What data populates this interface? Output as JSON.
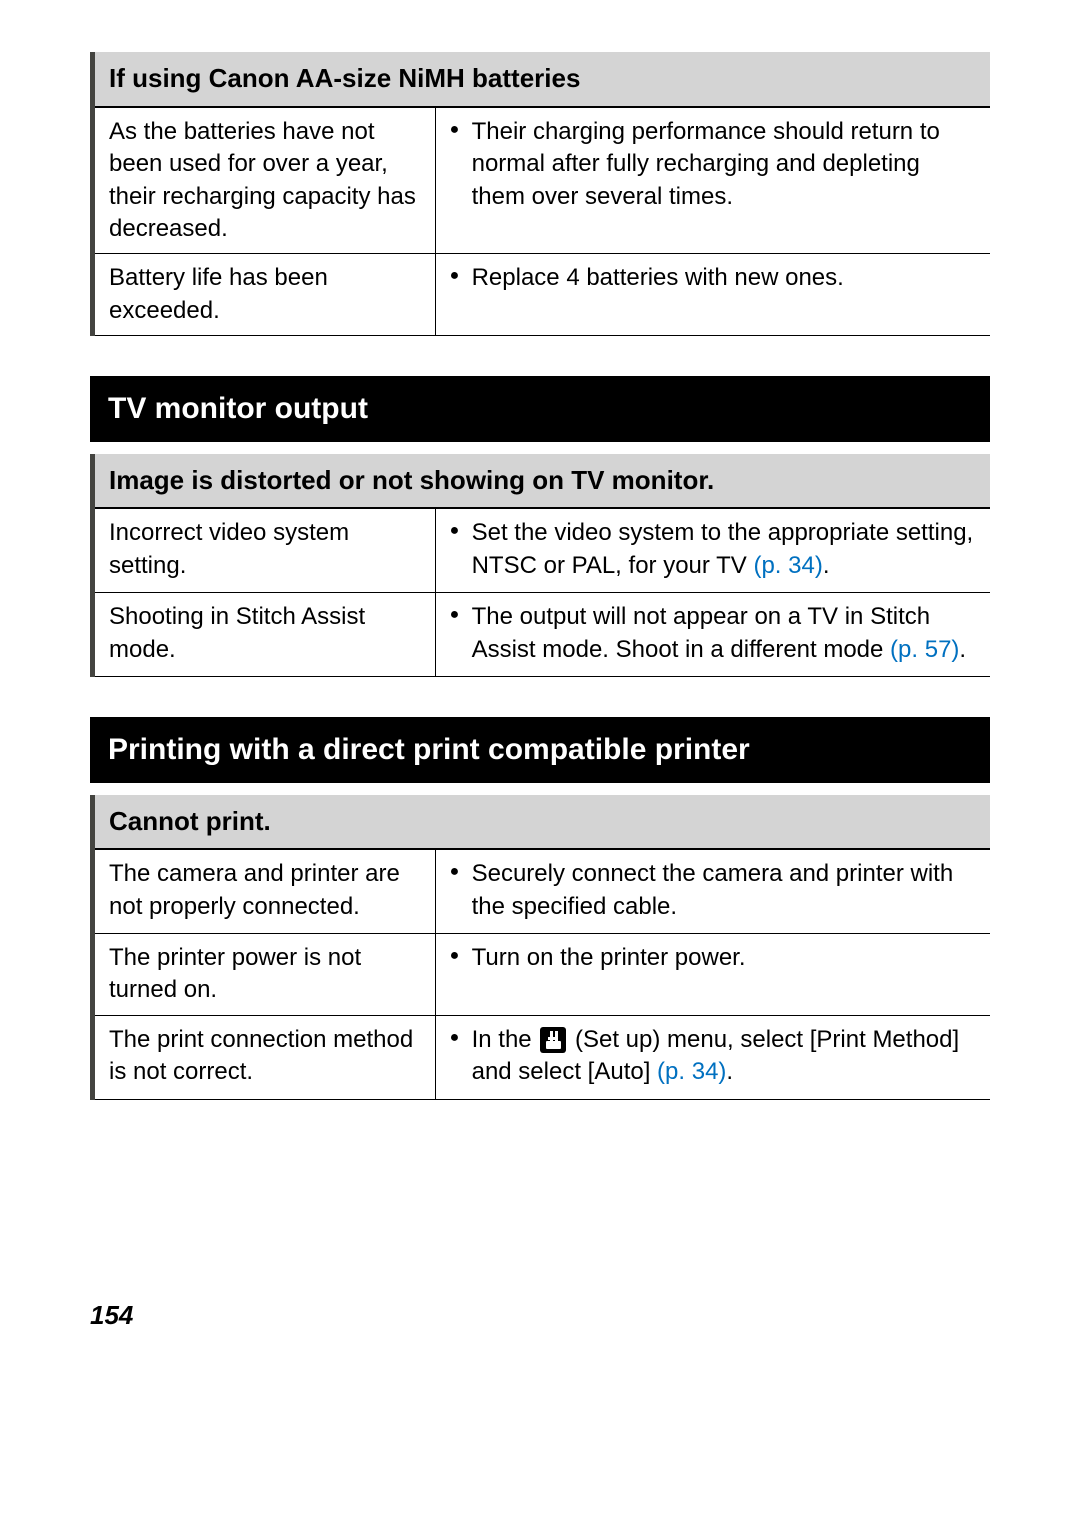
{
  "page_number": "154",
  "colors": {
    "heading_bg": "#000000",
    "heading_fg": "#ffffff",
    "subheading_bg": "#d4d4d4",
    "border": "#000000",
    "left_border": "#444440",
    "link": "#0070c0",
    "bullet": "#000000"
  },
  "typography": {
    "heading_fontsize": 30,
    "subheading_fontsize": 26,
    "body_fontsize": 24
  },
  "sections": [
    {
      "title": null,
      "sub": {
        "title": "If using Canon AA-size NiMH batteries",
        "rows": [
          {
            "cause": "As the batteries have not been used for over a year, their recharging capacity has decreased.",
            "solutions": [
              {
                "text": "Their charging performance should return to normal after fully recharging and depleting them over several times."
              }
            ]
          },
          {
            "cause": "Battery life has been exceeded.",
            "solutions": [
              {
                "text": "Replace 4 batteries with new ones."
              }
            ]
          }
        ]
      }
    },
    {
      "title": "TV monitor output",
      "sub": {
        "title": "Image is distorted or not showing on TV monitor.",
        "rows": [
          {
            "cause": "Incorrect video system setting.",
            "solutions": [
              {
                "text": "Set the video system to the appropriate setting, NTSC or PAL, for your TV ",
                "page_ref": "(p. 34)",
                "suffix": "."
              }
            ]
          },
          {
            "cause": "Shooting in Stitch Assist mode.",
            "solutions": [
              {
                "text": "The output will not appear on a TV in Stitch Assist mode. Shoot in a different mode ",
                "page_ref": "(p. 57)",
                "suffix": "."
              }
            ]
          }
        ]
      }
    },
    {
      "title": "Printing with a direct print compatible printer",
      "sub": {
        "title": "Cannot print.",
        "rows": [
          {
            "cause": "The camera and printer are not properly connected.",
            "solutions": [
              {
                "text": "Securely connect the camera and printer with the specified cable."
              }
            ]
          },
          {
            "cause": "The printer power is not turned on.",
            "solutions": [
              {
                "text": "Turn on the printer power."
              }
            ]
          },
          {
            "cause": "The print connection method is not correct.",
            "solutions": [
              {
                "pre_text": "In the ",
                "icon": "setup",
                "post_text": " (Set up) menu, select [Print Method] and select [Auto] ",
                "page_ref": "(p. 34)",
                "suffix": "."
              }
            ]
          }
        ]
      }
    }
  ]
}
